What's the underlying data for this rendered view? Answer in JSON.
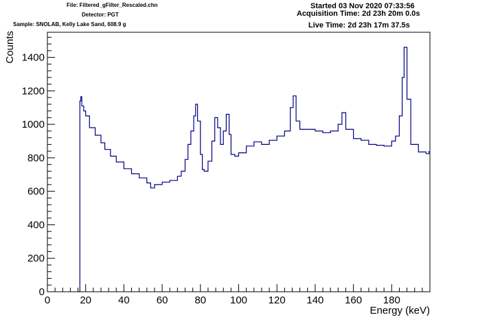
{
  "header": {
    "file": "File: Filtered_gFilter_Rescaled.chn",
    "detector": "Detector: PGT",
    "sample": "Sample: SNOLAB, Kelly Lake Sand, 608.9 g",
    "started": "Started 03 Nov 2020 07:33:56",
    "acquisition_time": "Acquisition Time: 2d 23h 20m 0.0s",
    "live_time": "Live Time: 2d 23h 17m 37.5s"
  },
  "colors": {
    "series": "#000080",
    "axis": "#000000",
    "background": "#ffffff"
  },
  "chart_data": {
    "type": "line",
    "style": "step-histogram",
    "xlabel": "Energy (keV)",
    "ylabel": "Counts",
    "xlim": [
      0,
      200
    ],
    "ylim": [
      0,
      1550
    ],
    "x_ticks": [
      0,
      20,
      40,
      60,
      80,
      100,
      120,
      140,
      160,
      180
    ],
    "y_ticks": [
      0,
      200,
      400,
      600,
      800,
      1000,
      1200,
      1400
    ],
    "grid": false,
    "legend": "none",
    "x": [
      16.5,
      17,
      17.5,
      18,
      19,
      20,
      22,
      25,
      28,
      30,
      33,
      36,
      40,
      44,
      48,
      52,
      54,
      56,
      60,
      64,
      68,
      70,
      72,
      73.5,
      75,
      76.5,
      77.5,
      78.5,
      80,
      81,
      82,
      84,
      86,
      87.5,
      89,
      90.5,
      92,
      93.5,
      95,
      96,
      98,
      100,
      104,
      108,
      112,
      116,
      120,
      124,
      127,
      128.5,
      130,
      132,
      136,
      140,
      144,
      148,
      152,
      154,
      156,
      160,
      164,
      168,
      172,
      176,
      180,
      182,
      184,
      185.5,
      186.5,
      188,
      190,
      194,
      198,
      199.5
    ],
    "values": [
      0,
      1140,
      1165,
      1110,
      1080,
      1050,
      980,
      935,
      890,
      850,
      810,
      775,
      735,
      705,
      680,
      650,
      620,
      640,
      655,
      665,
      690,
      720,
      790,
      880,
      960,
      1050,
      1120,
      1020,
      820,
      730,
      720,
      780,
      900,
      1040,
      980,
      880,
      960,
      1060,
      940,
      820,
      810,
      830,
      870,
      895,
      880,
      905,
      930,
      960,
      1100,
      1170,
      1020,
      970,
      970,
      960,
      950,
      960,
      1000,
      1070,
      970,
      915,
      905,
      880,
      875,
      870,
      900,
      930,
      1050,
      1280,
      1460,
      1150,
      880,
      835,
      825,
      840
    ]
  }
}
